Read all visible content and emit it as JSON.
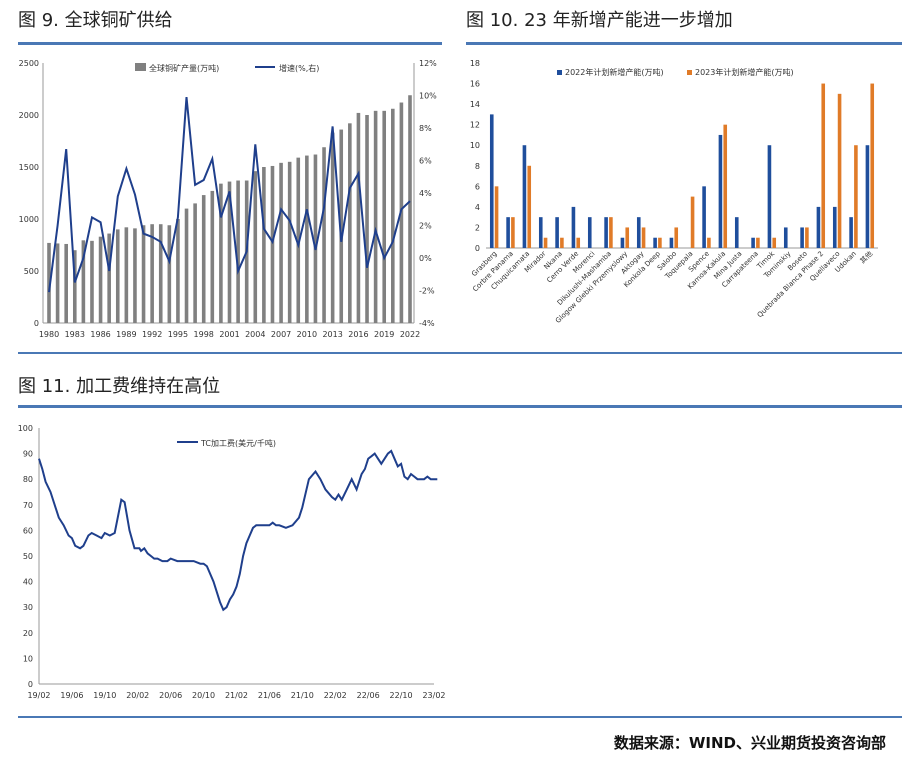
{
  "source_note": "数据来源：WIND、兴业期货投资咨询部",
  "colors": {
    "rule": "#4a78b5",
    "bar_grey": "#808080",
    "line_navy": "#1f3f8c",
    "bar_blue": "#1f4e9c",
    "bar_orange": "#e07b28",
    "tc_line": "#1f3f8c"
  },
  "figures": [
    {
      "title": "图 9. 全球铜矿供给"
    },
    {
      "title": "图 10. 23 年新增产能进一步增加"
    },
    {
      "title": "图 11. 加工费维持在高位"
    }
  ],
  "chart_data": [
    {
      "type": "bar",
      "id": "fig9",
      "title": "全球铜矿供给",
      "x": [
        1980,
        1981,
        1982,
        1983,
        1984,
        1985,
        1986,
        1987,
        1988,
        1989,
        1990,
        1991,
        1992,
        1993,
        1994,
        1995,
        1996,
        1997,
        1998,
        1999,
        2000,
        2001,
        2002,
        2003,
        2004,
        2005,
        2006,
        2007,
        2008,
        2009,
        2010,
        2011,
        2012,
        2013,
        2014,
        2015,
        2016,
        2017,
        2018,
        2019,
        2020,
        2021,
        2022
      ],
      "xticks": [
        "1980",
        "1983",
        "1986",
        "1989",
        "1992",
        "1995",
        "1998",
        "2001",
        "2004",
        "2007",
        "2010",
        "2013",
        "2016",
        "2019",
        "2022"
      ],
      "ylim": [
        0,
        2500
      ],
      "yticks": [
        "0",
        "500",
        "1000",
        "1500",
        "2000",
        "2500"
      ],
      "y2lim": [
        -4,
        12
      ],
      "y2ticks": [
        "-4%",
        "-2%",
        "0%",
        "2%",
        "4%",
        "6%",
        "8%",
        "10%",
        "12%"
      ],
      "series": [
        {
          "name": "全球铜矿产量(万吨)",
          "type": "bar",
          "axis": "left",
          "values": [
            770,
            765,
            760,
            700,
            795,
            790,
            830,
            860,
            900,
            920,
            910,
            940,
            950,
            950,
            940,
            1000,
            1100,
            1150,
            1230,
            1270,
            1340,
            1360,
            1370,
            1370,
            1460,
            1500,
            1510,
            1540,
            1550,
            1590,
            1610,
            1620,
            1690,
            1830,
            1860,
            1920,
            2020,
            2000,
            2040,
            2040,
            2060,
            2120,
            2190
          ]
        },
        {
          "name": "增速(%,右)",
          "type": "line",
          "axis": "right",
          "values": [
            -2.1,
            2.0,
            6.7,
            -1.5,
            0,
            2.5,
            2.2,
            -0.8,
            3.8,
            5.5,
            3.9,
            1.5,
            1.3,
            1.0,
            -0.2,
            2.5,
            9.9,
            4.5,
            4.8,
            6.1,
            2.5,
            4.1,
            -0.8,
            0.4,
            7.0,
            1.8,
            1.0,
            3.0,
            2.3,
            0.8,
            3.0,
            0.5,
            3.1,
            8.1,
            1.0,
            4.3,
            5.2,
            -0.6,
            1.7,
            0,
            1.0,
            3.0,
            3.5
          ]
        }
      ]
    },
    {
      "type": "bar",
      "id": "fig10",
      "title": "23 年新增产能进一步增加",
      "categories": [
        "Grasberg",
        "Corbre Panama",
        "Chuquicamata",
        "Mirador",
        "Nkana",
        "Cerro Verde",
        "Morenci",
        "Dikulushi-Mashamba",
        "Glogow Glebki Przemyslowy",
        "Aktogay",
        "Konkola Deep",
        "Salobo",
        "Toquepala",
        "Spence",
        "Kamoa-Kakula",
        "Mina Justa",
        "Carrapateena",
        "Timok",
        "Tominskiy",
        "Boseto",
        "Quebrada Blanca Phase 2",
        "Quellaveco",
        "Udokan",
        "其他"
      ],
      "ylim": [
        0,
        18
      ],
      "yticks": [
        "0",
        "2",
        "4",
        "6",
        "8",
        "10",
        "12",
        "14",
        "16",
        "18"
      ],
      "series": [
        {
          "name": "2022年计划新增产能(万吨)",
          "values": [
            13,
            3,
            10,
            3,
            3,
            4,
            3,
            3,
            1,
            3,
            1,
            1,
            0,
            6,
            11,
            3,
            1,
            10,
            2,
            2,
            4,
            4,
            3,
            10
          ]
        },
        {
          "name": "2023年计划新增产能(万吨)",
          "values": [
            6,
            3,
            8,
            1,
            1,
            1,
            0,
            3,
            2,
            2,
            1,
            2,
            5,
            1,
            12,
            0,
            1,
            1,
            0,
            2,
            16,
            15,
            10,
            16
          ]
        }
      ]
    },
    {
      "type": "line",
      "id": "fig11",
      "title": "加工费维持在高位",
      "xticks": [
        "19/02",
        "19/06",
        "19/10",
        "20/02",
        "20/06",
        "20/10",
        "21/02",
        "21/06",
        "21/10",
        "22/02",
        "22/06",
        "22/10",
        "23/02"
      ],
      "ylim": [
        0,
        100
      ],
      "yticks": [
        "0",
        "10",
        "20",
        "30",
        "40",
        "50",
        "60",
        "70",
        "80",
        "90",
        "100"
      ],
      "series": [
        {
          "name": "TC加工费(美元/千吨)",
          "x": [
            0,
            0.1,
            0.2,
            0.35,
            0.5,
            0.6,
            0.75,
            0.9,
            1.0,
            1.1,
            1.25,
            1.35,
            1.5,
            1.6,
            1.75,
            1.9,
            2.0,
            2.15,
            2.3,
            2.5,
            2.6,
            2.75,
            2.9,
            3.0,
            3.05,
            3.1,
            3.2,
            3.3,
            3.4,
            3.5,
            3.6,
            3.75,
            3.9,
            4.0,
            4.2,
            4.3,
            4.5,
            4.7,
            4.9,
            5.0,
            5.1,
            5.3,
            5.5,
            5.6,
            5.7,
            5.8,
            5.9,
            6.0,
            6.1,
            6.2,
            6.3,
            6.4,
            6.5,
            6.6,
            6.75,
            6.9,
            7.0,
            7.1,
            7.2,
            7.3,
            7.5,
            7.7,
            7.9,
            8.0,
            8.2,
            8.4,
            8.55,
            8.7,
            8.9,
            9.0,
            9.1,
            9.2,
            9.35,
            9.5,
            9.65,
            9.8,
            9.9,
            10.0,
            10.1,
            10.2,
            10.3,
            10.4,
            10.5,
            10.6,
            10.7,
            10.8,
            10.9,
            11.0,
            11.1,
            11.2,
            11.3,
            11.4,
            11.5,
            11.6,
            11.7,
            11.8,
            11.9,
            12.0,
            12.1
          ],
          "y": [
            88,
            84,
            79,
            75,
            69,
            65,
            62,
            58,
            57,
            54,
            53,
            54,
            58,
            59,
            58,
            57,
            59,
            58,
            59,
            72,
            71,
            60,
            53,
            53,
            53,
            52,
            53,
            51,
            50,
            49,
            49,
            48,
            48,
            49,
            48,
            48,
            48,
            48,
            47,
            47,
            46,
            40,
            32,
            29,
            30,
            33,
            35,
            38,
            43,
            50,
            55,
            58,
            61,
            62,
            62,
            62,
            62,
            63,
            62,
            62,
            61,
            62,
            65,
            69,
            80,
            83,
            80,
            76,
            73,
            72,
            74,
            72,
            76,
            80,
            76,
            82,
            84,
            88,
            89,
            90,
            88,
            86,
            88,
            90,
            91,
            88,
            85,
            86,
            81,
            80,
            82,
            81,
            80,
            80,
            80,
            81,
            80,
            80,
            80
          ]
        }
      ]
    }
  ]
}
